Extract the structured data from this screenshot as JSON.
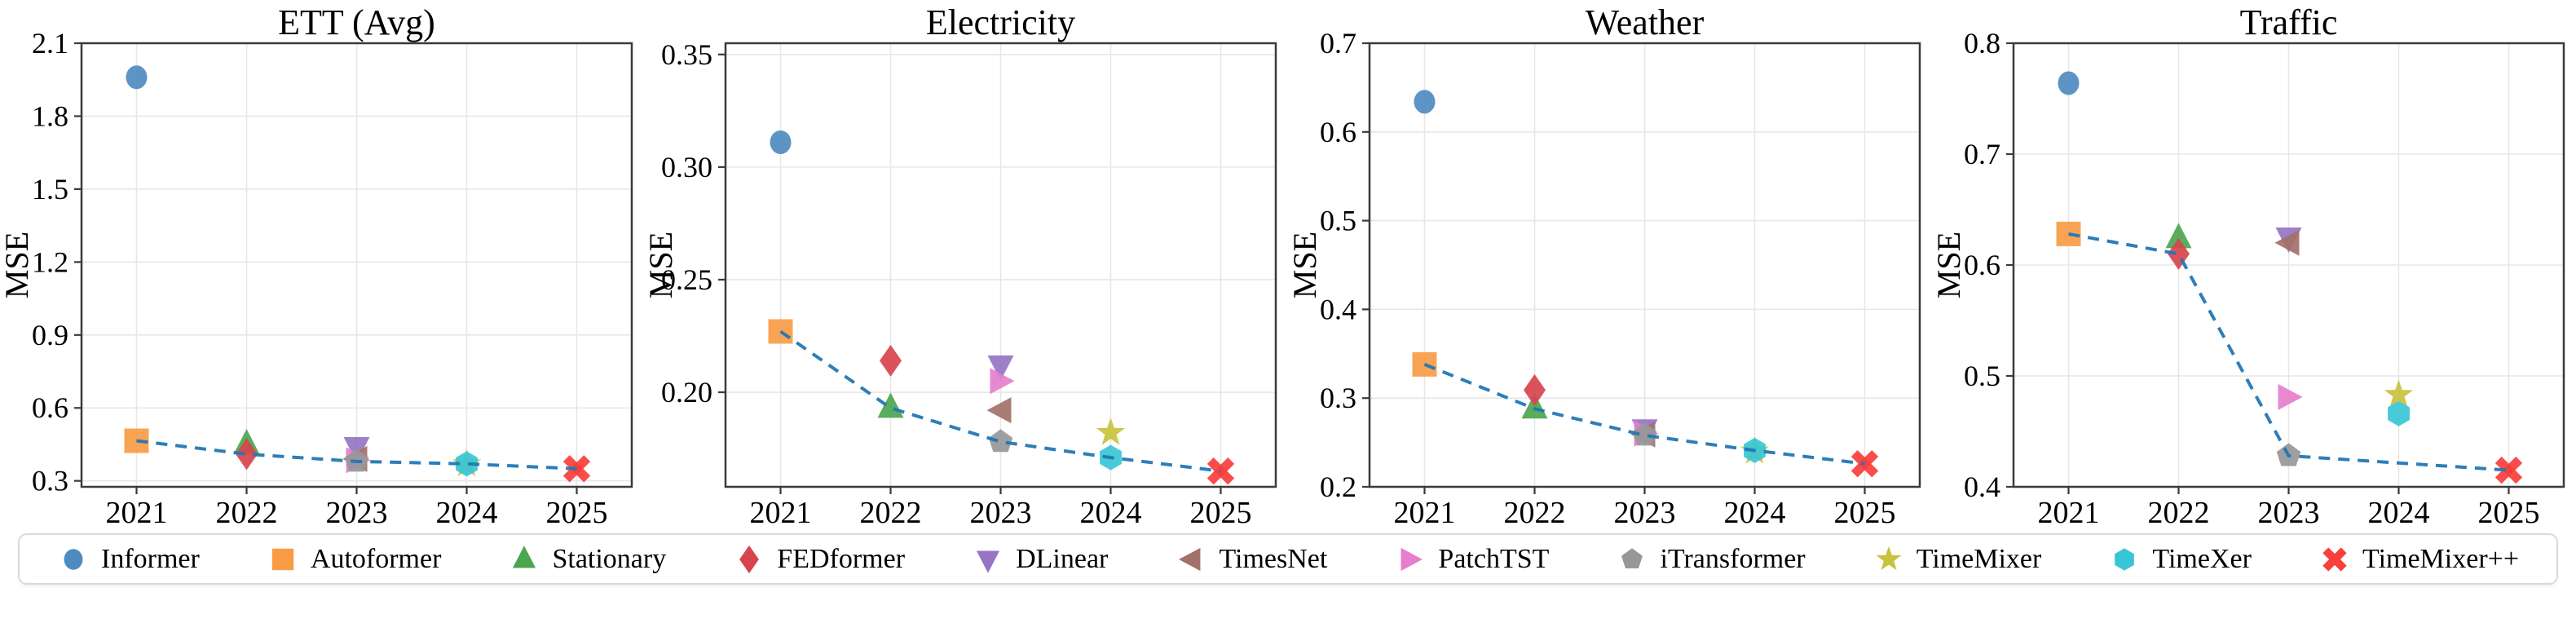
{
  "figure": {
    "ylabel": "MSE",
    "years": [
      2021,
      2022,
      2023,
      2024,
      2025
    ],
    "line_color": "#2277b4",
    "axis_color": "#3a3a3a",
    "grid_color": "#e7e7e7",
    "background_color": "#ffffff",
    "legend_border_color": "#dadada",
    "models": [
      {
        "name": "Informer",
        "marker": "circle",
        "color": "#4e8bc0"
      },
      {
        "name": "Autoformer",
        "marker": "square",
        "color": "#f99c45"
      },
      {
        "name": "Stationary",
        "marker": "triangle-up",
        "color": "#4ba64f"
      },
      {
        "name": "FEDformer",
        "marker": "diamond",
        "color": "#d7444e"
      },
      {
        "name": "DLinear",
        "marker": "triangle-down",
        "color": "#9674c6"
      },
      {
        "name": "TimesNet",
        "marker": "triangle-left",
        "color": "#a3716a"
      },
      {
        "name": "PatchTST",
        "marker": "triangle-right",
        "color": "#e67ecd"
      },
      {
        "name": "iTransformer",
        "marker": "pentagon",
        "color": "#979797"
      },
      {
        "name": "TimeMixer",
        "marker": "star",
        "color": "#c9c23c"
      },
      {
        "name": "TimeXer",
        "marker": "hexagon",
        "color": "#38c5d6"
      },
      {
        "name": "TimeMixer++",
        "marker": "x-cross",
        "color": "#f93e3c"
      }
    ]
  },
  "chart_data": [
    {
      "type": "scatter",
      "title": "ETT (Avg)",
      "xlabel": "",
      "ylabel": "MSE",
      "x": [
        2021,
        2022,
        2023,
        2024,
        2025
      ],
      "ylim": [
        0.2755,
        2.1
      ],
      "ytick_values": [
        0.3,
        0.6,
        0.9,
        1.2,
        1.5,
        1.8,
        2.1
      ],
      "ytick_labels": [
        "0.3",
        "0.6",
        "0.9",
        "1.2",
        "1.5",
        "1.8",
        "2.1"
      ],
      "grid": true,
      "points": [
        {
          "model": "Informer",
          "year": 2021,
          "value": 1.96
        },
        {
          "model": "Autoformer",
          "year": 2021,
          "value": 0.465
        },
        {
          "model": "Stationary",
          "year": 2022,
          "value": 0.45
        },
        {
          "model": "FEDformer",
          "year": 2022,
          "value": 0.41
        },
        {
          "model": "DLinear",
          "year": 2023,
          "value": 0.44
        },
        {
          "model": "TimesNet",
          "year": 2023,
          "value": 0.39
        },
        {
          "model": "PatchTST",
          "year": 2023,
          "value": 0.385
        },
        {
          "model": "iTransformer",
          "year": 2023,
          "value": 0.38
        },
        {
          "model": "TimeMixer",
          "year": 2024,
          "value": 0.369
        },
        {
          "model": "TimeXer",
          "year": 2024,
          "value": 0.37
        },
        {
          "model": "TimeMixer++",
          "year": 2025,
          "value": 0.35
        }
      ],
      "sota_line": [
        {
          "year": 2021,
          "value": 0.465
        },
        {
          "year": 2022,
          "value": 0.41
        },
        {
          "year": 2023,
          "value": 0.38
        },
        {
          "year": 2024,
          "value": 0.37
        },
        {
          "year": 2025,
          "value": 0.35
        }
      ]
    },
    {
      "type": "scatter",
      "title": "Electricity",
      "xlabel": "",
      "ylabel": "MSE",
      "x": [
        2021,
        2022,
        2023,
        2024,
        2025
      ],
      "ylim": [
        0.158,
        0.355
      ],
      "ytick_values": [
        0.2,
        0.25,
        0.3,
        0.35
      ],
      "ytick_labels": [
        "0.20",
        "0.25",
        "0.30",
        "0.35"
      ],
      "grid": true,
      "points": [
        {
          "model": "Informer",
          "year": 2021,
          "value": 0.311
        },
        {
          "model": "Autoformer",
          "year": 2021,
          "value": 0.227
        },
        {
          "model": "Stationary",
          "year": 2022,
          "value": 0.193
        },
        {
          "model": "FEDformer",
          "year": 2022,
          "value": 0.214
        },
        {
          "model": "DLinear",
          "year": 2023,
          "value": 0.212
        },
        {
          "model": "TimesNet",
          "year": 2023,
          "value": 0.192
        },
        {
          "model": "PatchTST",
          "year": 2023,
          "value": 0.205
        },
        {
          "model": "iTransformer",
          "year": 2023,
          "value": 0.178
        },
        {
          "model": "TimeMixer",
          "year": 2024,
          "value": 0.182
        },
        {
          "model": "TimeXer",
          "year": 2024,
          "value": 0.171
        },
        {
          "model": "TimeMixer++",
          "year": 2025,
          "value": 0.165
        }
      ],
      "sota_line": [
        {
          "year": 2021,
          "value": 0.227
        },
        {
          "year": 2022,
          "value": 0.193
        },
        {
          "year": 2023,
          "value": 0.178
        },
        {
          "year": 2024,
          "value": 0.171
        },
        {
          "year": 2025,
          "value": 0.165
        }
      ]
    },
    {
      "type": "scatter",
      "title": "Weather",
      "xlabel": "",
      "ylabel": "MSE",
      "x": [
        2021,
        2022,
        2023,
        2024,
        2025
      ],
      "ylim": [
        0.2,
        0.7
      ],
      "ytick_values": [
        0.2,
        0.3,
        0.4,
        0.5,
        0.6,
        0.7
      ],
      "ytick_labels": [
        "0.2",
        "0.3",
        "0.4",
        "0.5",
        "0.6",
        "0.7"
      ],
      "grid": true,
      "points": [
        {
          "model": "Informer",
          "year": 2021,
          "value": 0.634
        },
        {
          "model": "Autoformer",
          "year": 2021,
          "value": 0.338
        },
        {
          "model": "Stationary",
          "year": 2022,
          "value": 0.288
        },
        {
          "model": "FEDformer",
          "year": 2022,
          "value": 0.309
        },
        {
          "model": "DLinear",
          "year": 2023,
          "value": 0.265
        },
        {
          "model": "TimesNet",
          "year": 2023,
          "value": 0.259
        },
        {
          "model": "PatchTST",
          "year": 2023,
          "value": 0.26
        },
        {
          "model": "iTransformer",
          "year": 2023,
          "value": 0.258
        },
        {
          "model": "TimeMixer",
          "year": 2024,
          "value": 0.24
        },
        {
          "model": "TimeXer",
          "year": 2024,
          "value": 0.241
        },
        {
          "model": "TimeMixer++",
          "year": 2025,
          "value": 0.226
        }
      ],
      "sota_line": [
        {
          "year": 2021,
          "value": 0.338
        },
        {
          "year": 2022,
          "value": 0.288
        },
        {
          "year": 2023,
          "value": 0.258
        },
        {
          "year": 2024,
          "value": 0.241
        },
        {
          "year": 2025,
          "value": 0.226
        }
      ]
    },
    {
      "type": "scatter",
      "title": "Traffic",
      "xlabel": "",
      "ylabel": "MSE",
      "x": [
        2021,
        2022,
        2023,
        2024,
        2025
      ],
      "ylim": [
        0.4,
        0.8
      ],
      "ytick_values": [
        0.4,
        0.5,
        0.6,
        0.7,
        0.8
      ],
      "ytick_labels": [
        "0.4",
        "0.5",
        "0.6",
        "0.7",
        "0.8"
      ],
      "grid": true,
      "points": [
        {
          "model": "Informer",
          "year": 2021,
          "value": 0.764
        },
        {
          "model": "Autoformer",
          "year": 2021,
          "value": 0.628
        },
        {
          "model": "Stationary",
          "year": 2022,
          "value": 0.624
        },
        {
          "model": "FEDformer",
          "year": 2022,
          "value": 0.61
        },
        {
          "model": "DLinear",
          "year": 2023,
          "value": 0.625
        },
        {
          "model": "TimesNet",
          "year": 2023,
          "value": 0.62
        },
        {
          "model": "PatchTST",
          "year": 2023,
          "value": 0.481
        },
        {
          "model": "iTransformer",
          "year": 2023,
          "value": 0.428
        },
        {
          "model": "TimeMixer",
          "year": 2024,
          "value": 0.483
        },
        {
          "model": "TimeXer",
          "year": 2024,
          "value": 0.466
        },
        {
          "model": "TimeMixer++",
          "year": 2025,
          "value": 0.415
        }
      ],
      "sota_line": [
        {
          "year": 2021,
          "value": 0.628
        },
        {
          "year": 2022,
          "value": 0.61
        },
        {
          "year": 2023,
          "value": 0.428
        },
        {
          "year": 2025,
          "value": 0.415
        }
      ]
    }
  ]
}
